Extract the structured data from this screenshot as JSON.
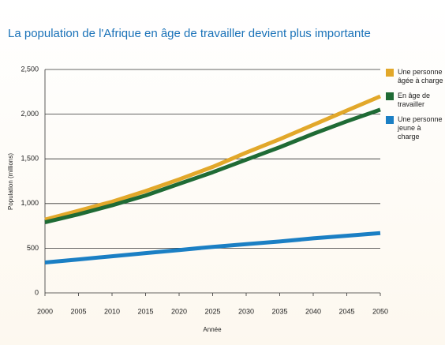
{
  "chart_data": {
    "type": "line",
    "title": "La population de l'Afrique en âge de travailler devient plus importante",
    "y_label": "Population (millions)",
    "x_label": "Année",
    "x": [
      2000,
      2005,
      2010,
      2015,
      2020,
      2025,
      2030,
      2035,
      2040,
      2045,
      2050
    ],
    "xlim": [
      2000,
      2050
    ],
    "xticks": [
      2000,
      2005,
      2010,
      2015,
      2020,
      2025,
      2030,
      2035,
      2040,
      2045,
      2050
    ],
    "ylim": [
      0,
      2500
    ],
    "yticks": [
      0,
      500,
      {
        "value": 1000,
        "label": "1,000"
      },
      {
        "value": 1500,
        "label": "1,500"
      },
      {
        "value": 2000,
        "label": "2,000"
      },
      {
        "value": 2500,
        "label": "2,500"
      }
    ],
    "grid": true,
    "legend": "right",
    "series": [
      {
        "name": "Une personne âgée à charge",
        "color": "#e2a82a",
        "values": [
          820,
          920,
          1020,
          1140,
          1270,
          1410,
          1570,
          1720,
          1880,
          2040,
          2200
        ]
      },
      {
        "name": "En âge de travailler",
        "color": "#1f6b35",
        "values": [
          790,
          880,
          980,
          1090,
          1220,
          1350,
          1490,
          1630,
          1780,
          1920,
          2050
        ]
      },
      {
        "name": "Une personne jeune à charge",
        "color": "#1b7fc4",
        "values": [
          340,
          375,
          410,
          445,
          480,
          515,
          545,
          575,
          610,
          640,
          670
        ]
      }
    ]
  }
}
